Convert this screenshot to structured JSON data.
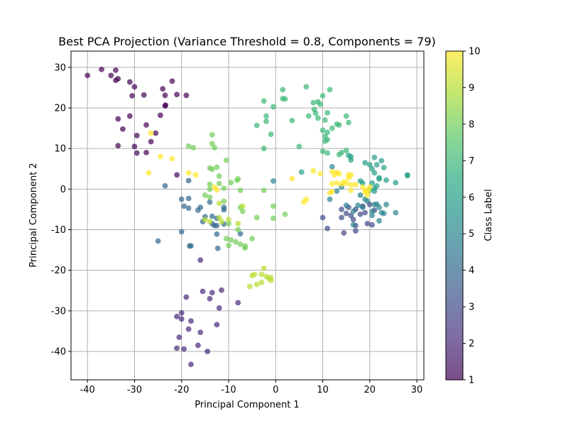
{
  "chart_data": {
    "type": "scatter",
    "title": "Best PCA Projection (Variance Threshold = 0.8, Components = 79)",
    "xlabel": "Principal Component 1",
    "ylabel": "Principal Component 2",
    "xlim": [
      -43.5,
      31.5
    ],
    "ylim": [
      -47,
      34
    ],
    "xticks": [
      -40,
      -30,
      -20,
      -10,
      0,
      10,
      20,
      30
    ],
    "yticks": [
      -40,
      -30,
      -20,
      -10,
      0,
      10,
      20,
      30
    ],
    "grid": true,
    "colormap": "viridis",
    "colorbar": {
      "label": "Class Label",
      "range": [
        1,
        10
      ],
      "ticks": [
        1,
        2,
        3,
        4,
        5,
        6,
        7,
        8,
        9,
        10
      ]
    },
    "point_alpha": 0.7,
    "series": [
      {
        "class": 1,
        "points": [
          [
            -40,
            28
          ],
          [
            -37,
            29.5
          ],
          [
            -35,
            28
          ],
          [
            -34,
            29.3
          ],
          [
            -34,
            26.8
          ],
          [
            -33.5,
            27.2
          ],
          [
            -31,
            26.4
          ],
          [
            -30,
            25.2
          ],
          [
            -30.5,
            23
          ],
          [
            -28,
            23.2
          ],
          [
            -24,
            24.7
          ],
          [
            -23.5,
            23.1
          ],
          [
            -22,
            26.6
          ],
          [
            -21,
            23.3
          ],
          [
            -19,
            23.1
          ],
          [
            -23.5,
            20.5
          ],
          [
            -23.4,
            20.7
          ],
          [
            -24.5,
            18.2
          ],
          [
            -33.5,
            17.3
          ],
          [
            -31,
            18
          ],
          [
            -32.5,
            14.8
          ],
          [
            -27.5,
            15.8
          ],
          [
            -26.5,
            11.7
          ],
          [
            -29.5,
            13.2
          ],
          [
            -25.5,
            13.8
          ],
          [
            -30,
            10.5
          ],
          [
            -33.5,
            10.7
          ],
          [
            -29.5,
            8.9
          ],
          [
            -27.5,
            9
          ],
          [
            -21,
            3.5
          ]
        ]
      },
      {
        "class": 2,
        "points": [
          [
            -20,
            -30.5
          ],
          [
            -21,
            -31.4
          ],
          [
            -20,
            -32
          ],
          [
            -18,
            -32.5
          ],
          [
            -18.5,
            -34.5
          ],
          [
            -16,
            -35.3
          ],
          [
            -20.5,
            -36.5
          ],
          [
            -16.5,
            -38.5
          ],
          [
            -19.5,
            -39.4
          ],
          [
            -21,
            -39.2
          ],
          [
            -14.5,
            -40
          ],
          [
            -18,
            -43.2
          ],
          [
            -15.5,
            -25.2
          ],
          [
            -13.5,
            -25.5
          ],
          [
            -11.5,
            -24.9
          ],
          [
            -14,
            -27
          ],
          [
            -12,
            -29.3
          ],
          [
            -12.5,
            -33.4
          ],
          [
            -8,
            -28
          ],
          [
            -19,
            -26.6
          ],
          [
            -16,
            -17.5
          ]
        ]
      },
      {
        "class": 3,
        "points": [
          [
            10,
            -7
          ],
          [
            11,
            -9.7
          ],
          [
            14,
            -5
          ],
          [
            14.5,
            -10.8
          ],
          [
            15.5,
            -4.5
          ],
          [
            16,
            -6.5
          ],
          [
            17,
            -5
          ],
          [
            16.5,
            -7.5
          ],
          [
            17,
            -9
          ],
          [
            18.5,
            -4.2
          ],
          [
            17,
            -10.3
          ],
          [
            18,
            -6.2
          ],
          [
            19,
            -5.8
          ],
          [
            19.5,
            -8.5
          ],
          [
            20,
            -3.8
          ],
          [
            21,
            -5.2
          ],
          [
            20.5,
            -8.8
          ],
          [
            14,
            -7
          ],
          [
            15,
            -6
          ]
        ]
      },
      {
        "class": 4,
        "points": [
          [
            -23.5,
            0.8
          ],
          [
            -25,
            -12.8
          ],
          [
            -20,
            -2.5
          ],
          [
            -19.5,
            -4.2
          ],
          [
            -18.5,
            -4.7
          ],
          [
            -18.5,
            -2.3
          ],
          [
            -18.5,
            2.1
          ],
          [
            -18,
            -14
          ],
          [
            -18.3,
            -14
          ],
          [
            -20,
            -10.5
          ],
          [
            -16,
            -4.5
          ],
          [
            -16.5,
            -5.2
          ],
          [
            -15.5,
            -8
          ],
          [
            -15,
            -6.8
          ],
          [
            -13.5,
            -6.7
          ],
          [
            -13.5,
            -8.5
          ],
          [
            -12.5,
            -7.2
          ],
          [
            -12.5,
            -9
          ],
          [
            -12.5,
            -11.1
          ],
          [
            -12.3,
            -14.6
          ],
          [
            -11,
            -5.1
          ],
          [
            -11,
            -8.6
          ],
          [
            -13,
            -9
          ],
          [
            -7.5,
            -11
          ],
          [
            -11,
            -4.5
          ],
          [
            -14,
            -3.2
          ]
        ]
      },
      {
        "class": 5,
        "points": [
          [
            11.5,
            -2.5
          ],
          [
            15,
            -4
          ],
          [
            16.5,
            -5.5
          ],
          [
            17.5,
            -4
          ],
          [
            18,
            -1.5
          ],
          [
            18.5,
            -4.5
          ],
          [
            19,
            -2.5
          ],
          [
            19.5,
            -3
          ],
          [
            20.5,
            -5.5
          ],
          [
            21,
            -3.8
          ],
          [
            22,
            -4.5
          ],
          [
            22.5,
            -5.8
          ],
          [
            22,
            -7.8
          ],
          [
            23.5,
            -3.8
          ],
          [
            25.5,
            -5.8
          ],
          [
            23,
            -6
          ],
          [
            20.5,
            -6.5
          ],
          [
            21.5,
            -3.7
          ],
          [
            13,
            -0.5
          ],
          [
            14,
            0.5
          ],
          [
            12,
            5.5
          ],
          [
            -0.5,
            2
          ],
          [
            16.5,
            -8.8
          ]
        ]
      },
      {
        "class": 6,
        "points": [
          [
            19,
            6.5
          ],
          [
            20,
            6
          ],
          [
            21,
            7.8
          ],
          [
            22.5,
            7
          ],
          [
            21.5,
            6
          ],
          [
            20.5,
            5
          ],
          [
            21,
            4
          ],
          [
            23,
            5.3
          ],
          [
            22,
            2.5
          ],
          [
            23.5,
            2.2
          ],
          [
            22,
            2.8
          ],
          [
            21.5,
            0.8
          ],
          [
            20,
            -0.3
          ],
          [
            21,
            -0.5
          ],
          [
            20.5,
            1.5
          ],
          [
            21,
            0.2
          ],
          [
            25.5,
            1.6
          ],
          [
            28,
            3.5
          ],
          [
            28,
            3.3
          ],
          [
            18.5,
            1.5
          ],
          [
            16,
            8
          ],
          [
            15.5,
            8.3
          ],
          [
            16,
            7.2
          ],
          [
            5.5,
            4.2
          ],
          [
            18,
            2
          ]
        ]
      },
      {
        "class": 7,
        "points": [
          [
            1.5,
            24.5
          ],
          [
            1.5,
            22.3
          ],
          [
            2,
            22.2
          ],
          [
            6.5,
            25.2
          ],
          [
            10,
            23
          ],
          [
            11.5,
            24.5
          ],
          [
            9,
            21.5
          ],
          [
            8,
            21.3
          ],
          [
            9.5,
            20.9
          ],
          [
            -2.5,
            21.7
          ],
          [
            -0.5,
            20.3
          ],
          [
            -2,
            18
          ],
          [
            -2,
            16.7
          ],
          [
            3.5,
            16.9
          ],
          [
            8.5,
            18.7
          ],
          [
            8.2,
            19.6
          ],
          [
            7,
            18
          ],
          [
            11,
            18.8
          ],
          [
            9,
            17.5
          ],
          [
            10.5,
            17
          ],
          [
            12,
            15
          ],
          [
            13,
            16
          ],
          [
            13.5,
            15.8
          ],
          [
            10,
            14.5
          ],
          [
            11,
            14
          ],
          [
            10.5,
            13
          ],
          [
            11,
            12.2
          ],
          [
            10.5,
            11.8
          ],
          [
            -4,
            15.7
          ],
          [
            -1,
            13.5
          ],
          [
            5,
            10.5
          ],
          [
            10,
            9.3
          ],
          [
            11,
            8.9
          ],
          [
            13.5,
            8.5
          ],
          [
            15,
            9.5
          ],
          [
            15,
            18
          ],
          [
            15.5,
            16.4
          ],
          [
            -2.5,
            10
          ],
          [
            14,
            9
          ]
        ]
      },
      {
        "class": 8,
        "points": [
          [
            -13.5,
            13.4
          ],
          [
            -13.5,
            11.2
          ],
          [
            -13,
            10.2
          ],
          [
            -18.5,
            10.6
          ],
          [
            -17.5,
            10.2
          ],
          [
            -14,
            5.2
          ],
          [
            -13.5,
            4.9
          ],
          [
            -12.5,
            5.4
          ],
          [
            -12,
            3.2
          ],
          [
            -10.5,
            7.1
          ],
          [
            -12,
            1.4
          ],
          [
            -9.5,
            1.6
          ],
          [
            -8,
            2.5
          ],
          [
            -8.2,
            2.2
          ],
          [
            -14,
            1.2
          ],
          [
            -14,
            0
          ],
          [
            -11,
            0.2
          ],
          [
            -7.5,
            -0.3
          ],
          [
            -2.5,
            -0.3
          ],
          [
            -14,
            -2
          ],
          [
            -11,
            -3
          ],
          [
            -15,
            -1.5
          ],
          [
            -7.5,
            -4.5
          ],
          [
            -7,
            -5.5
          ],
          [
            -0.5,
            -4.2
          ],
          [
            2,
            -6.2
          ],
          [
            -0.5,
            -7.2
          ],
          [
            -10,
            -8.5
          ],
          [
            -8,
            -10
          ],
          [
            -10.5,
            -12.2
          ],
          [
            -10,
            -13.9
          ],
          [
            -9.5,
            -12.5
          ],
          [
            -8.5,
            -13
          ],
          [
            -7.5,
            -13.6
          ],
          [
            -6.5,
            -14.5
          ],
          [
            -5,
            -12.2
          ],
          [
            -4,
            -7
          ],
          [
            -6.5,
            -14
          ]
        ]
      },
      {
        "class": 9,
        "points": [
          [
            -2.5,
            -19.5
          ],
          [
            -3,
            -21
          ],
          [
            -2,
            -21.5
          ],
          [
            -4.5,
            -21
          ],
          [
            -5,
            -21.3
          ],
          [
            -1.5,
            -22
          ],
          [
            -3,
            -23
          ],
          [
            -1,
            -21.8
          ],
          [
            -1,
            -22.5
          ],
          [
            -4,
            -23.5
          ],
          [
            -5.5,
            -24
          ],
          [
            -12,
            -7
          ],
          [
            -11.5,
            -8
          ],
          [
            -15,
            -7.5
          ],
          [
            -14,
            -8
          ],
          [
            -10,
            -7.5
          ],
          [
            -8,
            -8.5
          ],
          [
            -12,
            -3.5
          ],
          [
            -7,
            -4.2
          ]
        ]
      },
      {
        "class": 10,
        "points": [
          [
            -26.5,
            13.8
          ],
          [
            -24.5,
            8
          ],
          [
            -22,
            7.5
          ],
          [
            -27,
            4
          ],
          [
            -18.5,
            4
          ],
          [
            -17,
            3.5
          ],
          [
            -12.5,
            -0.2
          ],
          [
            -13,
            0.5
          ],
          [
            3.5,
            2.6
          ],
          [
            6,
            -3.2
          ],
          [
            6.5,
            -2.5
          ],
          [
            8,
            4.5
          ],
          [
            9.5,
            3.8
          ],
          [
            12,
            4.3
          ],
          [
            13,
            4.1
          ],
          [
            12,
            1.3
          ],
          [
            13,
            1.5
          ],
          [
            14,
            1.2
          ],
          [
            15,
            1.4
          ],
          [
            15.5,
            3.5
          ],
          [
            14.5,
            1.8
          ],
          [
            16,
            1.1
          ],
          [
            17,
            1.1
          ],
          [
            15.5,
            2.7
          ],
          [
            16,
            3.5
          ],
          [
            13.5,
            3.8
          ],
          [
            12.5,
            3.5
          ],
          [
            12,
            -0.6
          ],
          [
            11.5,
            -0.9
          ],
          [
            16,
            -0.3
          ],
          [
            19,
            -0.7
          ],
          [
            19.2,
            -0.3
          ],
          [
            19.7,
            -0.4
          ],
          [
            18.5,
            0.5
          ],
          [
            20,
            0.5
          ],
          [
            19.5,
            -1.5
          ]
        ]
      }
    ]
  }
}
